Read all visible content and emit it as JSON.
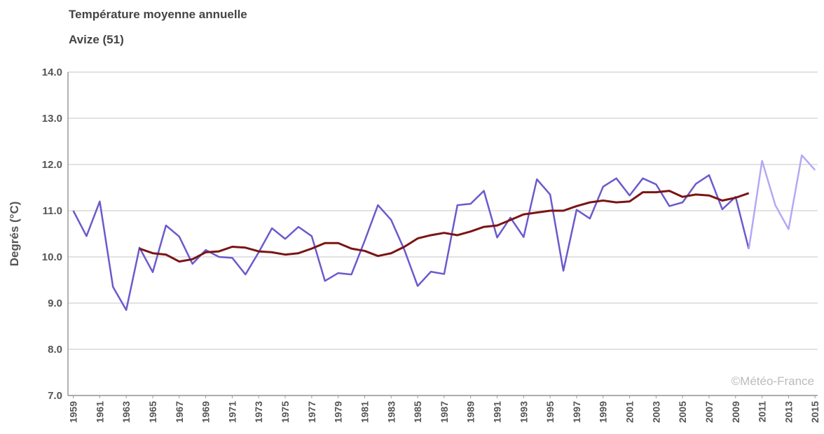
{
  "chart_data": {
    "type": "line",
    "title": "Température moyenne annuelle",
    "subtitle": "Avize (51)",
    "y_label": "Degrés (°C)",
    "annotation": "©Météo-France",
    "x": [
      1959,
      1960,
      1961,
      1962,
      1963,
      1964,
      1965,
      1966,
      1967,
      1968,
      1969,
      1970,
      1971,
      1972,
      1973,
      1974,
      1975,
      1976,
      1977,
      1978,
      1979,
      1980,
      1981,
      1982,
      1983,
      1984,
      1985,
      1986,
      1987,
      1988,
      1989,
      1990,
      1991,
      1992,
      1993,
      1994,
      1995,
      1996,
      1997,
      1998,
      1999,
      2000,
      2001,
      2002,
      2003,
      2004,
      2005,
      2006,
      2007,
      2008,
      2009,
      2010,
      2011,
      2012,
      2013,
      2014,
      2015
    ],
    "xlim": [
      1958.6,
      2015.2
    ],
    "xticks": [
      1959,
      1961,
      1963,
      1965,
      1967,
      1969,
      1971,
      1973,
      1975,
      1977,
      1979,
      1981,
      1983,
      1985,
      1987,
      1989,
      1991,
      1993,
      1995,
      1997,
      1999,
      2001,
      2003,
      2005,
      2007,
      2009,
      2011,
      2013,
      2015
    ],
    "ylim": [
      7,
      14
    ],
    "yticks": [
      {
        "value": 7,
        "label": "7.0"
      },
      {
        "value": 8,
        "label": "8.0"
      },
      {
        "value": 9,
        "label": "9.0"
      },
      {
        "value": 10,
        "label": "10.0"
      },
      {
        "value": 11,
        "label": "11.0"
      },
      {
        "value": 12,
        "label": "12.0"
      },
      {
        "value": 13,
        "label": "13.0"
      },
      {
        "value": 14,
        "label": "14.0"
      }
    ],
    "grid": true,
    "series": [
      {
        "color": "#6a5acd",
        "width": 2.5,
        "values": [
          11.0,
          10.45,
          11.2,
          9.35,
          8.85,
          10.2,
          9.67,
          10.68,
          10.44,
          9.85,
          10.15,
          10.0,
          9.98,
          9.62,
          10.1,
          10.62,
          10.39,
          10.65,
          10.45,
          9.48,
          9.65,
          9.62,
          10.35,
          11.12,
          10.8,
          10.15,
          9.37,
          9.68,
          9.63,
          11.12,
          11.15,
          11.43,
          10.42,
          10.85,
          10.43,
          11.68,
          11.35,
          9.7,
          11.02,
          10.83,
          11.52,
          11.7,
          11.33,
          11.7,
          11.57,
          11.1,
          11.18,
          11.58,
          11.77,
          11.03,
          11.3,
          10.17,
          null,
          null,
          null,
          null,
          null
        ]
      },
      {
        "color": "#b3a9f5",
        "width": 2.5,
        "values": [
          null,
          null,
          null,
          null,
          null,
          null,
          null,
          null,
          null,
          null,
          null,
          null,
          null,
          null,
          null,
          null,
          null,
          null,
          null,
          null,
          null,
          null,
          null,
          null,
          null,
          null,
          null,
          null,
          null,
          null,
          null,
          null,
          null,
          null,
          null,
          null,
          null,
          null,
          null,
          null,
          null,
          null,
          null,
          null,
          null,
          null,
          null,
          null,
          null,
          null,
          null,
          10.17,
          12.08,
          11.12,
          10.6,
          12.2,
          11.88
        ]
      },
      {
        "color": "#7b1414",
        "width": 3,
        "values": [
          null,
          null,
          null,
          null,
          null,
          10.18,
          10.08,
          10.05,
          9.9,
          9.95,
          10.1,
          10.12,
          10.22,
          10.2,
          10.12,
          10.1,
          10.05,
          10.08,
          10.18,
          10.3,
          10.3,
          10.18,
          10.13,
          10.02,
          10.08,
          10.22,
          10.4,
          10.47,
          10.52,
          10.47,
          10.55,
          10.65,
          10.68,
          10.8,
          10.92,
          10.96,
          11.0,
          11.0,
          11.1,
          11.18,
          11.22,
          11.18,
          11.2,
          11.4,
          11.4,
          11.43,
          11.3,
          11.35,
          11.33,
          11.22,
          11.28,
          11.38,
          null,
          null,
          null,
          null,
          null
        ]
      }
    ]
  }
}
